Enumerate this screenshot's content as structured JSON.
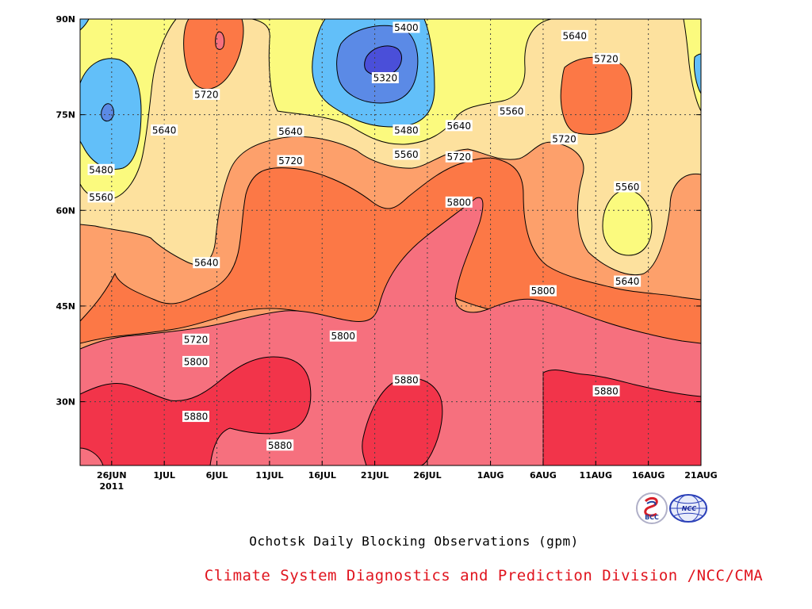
{
  "chart_data": {
    "type": "heatmap",
    "title": "Ochotsk Daily Blocking Observations (gpm)",
    "credit": "Climate System Diagnostics and Prediction Division /NCC/CMA",
    "x_ticks": [
      "26JUN",
      "1JUL",
      "6JUL",
      "11JUL",
      "16JUL",
      "21JUL",
      "26JUL",
      "1AUG",
      "6AUG",
      "11AUG",
      "16AUG",
      "21AUG"
    ],
    "x_tick_year": "2011",
    "xlim": [
      "2011-06-23",
      "2011-08-21"
    ],
    "y_ticks": [
      "30N",
      "45N",
      "60N",
      "75N",
      "90N"
    ],
    "ylim": [
      20,
      90
    ],
    "grid": true,
    "contour_levels": [
      5320,
      5400,
      5480,
      5560,
      5640,
      5720,
      5800,
      5880
    ],
    "level_colors": [
      "#4a4fd9",
      "#5b8ae6",
      "#62bff9",
      "#fbfa7e",
      "#fde19e",
      "#fda06b",
      "#fc7846",
      "#f6707e",
      "#f2344a"
    ],
    "contour_labels": [
      {
        "text": "5400",
        "date": "2011-07-24",
        "lat": 88.7
      },
      {
        "text": "5640",
        "date": "2011-08-09",
        "lat": 87.4
      },
      {
        "text": "5720",
        "date": "2011-08-12",
        "lat": 83.8
      },
      {
        "text": "5320",
        "date": "2011-07-22",
        "lat": 80.8
      },
      {
        "text": "5720",
        "date": "2011-07-05",
        "lat": 78.2
      },
      {
        "text": "5560",
        "date": "2011-08-03",
        "lat": 75.6
      },
      {
        "text": "5640",
        "date": "2011-07-01",
        "lat": 72.6
      },
      {
        "text": "5640",
        "date": "2011-07-13",
        "lat": 72.4
      },
      {
        "text": "5480",
        "date": "2011-07-24",
        "lat": 72.6
      },
      {
        "text": "5640",
        "date": "2011-07-29",
        "lat": 73.3
      },
      {
        "text": "5720",
        "date": "2011-08-08",
        "lat": 71.2
      },
      {
        "text": "5560",
        "date": "2011-07-24",
        "lat": 68.8
      },
      {
        "text": "5720",
        "date": "2011-07-13",
        "lat": 67.8
      },
      {
        "text": "5720",
        "date": "2011-07-29",
        "lat": 68.4
      },
      {
        "text": "5480",
        "date": "2011-06-25",
        "lat": 66.4
      },
      {
        "text": "5560",
        "date": "2011-08-14",
        "lat": 63.7
      },
      {
        "text": "5560",
        "date": "2011-06-25",
        "lat": 62.1
      },
      {
        "text": "5800",
        "date": "2011-07-29",
        "lat": 61.3
      },
      {
        "text": "5640",
        "date": "2011-07-05",
        "lat": 51.8
      },
      {
        "text": "5640",
        "date": "2011-08-14",
        "lat": 48.9
      },
      {
        "text": "5800",
        "date": "2011-08-06",
        "lat": 47.4
      },
      {
        "text": "5800",
        "date": "2011-07-18",
        "lat": 40.3
      },
      {
        "text": "5720",
        "date": "2011-07-04",
        "lat": 39.8
      },
      {
        "text": "5800",
        "date": "2011-07-04",
        "lat": 36.3
      },
      {
        "text": "5880",
        "date": "2011-07-24",
        "lat": 33.4
      },
      {
        "text": "5880",
        "date": "2011-08-12",
        "lat": 31.7
      },
      {
        "text": "5880",
        "date": "2011-07-04",
        "lat": 27.7
      },
      {
        "text": "5880",
        "date": "2011-07-12",
        "lat": 23.2
      }
    ]
  },
  "logos": {
    "bcc_text": "BCC",
    "ncc_text": "NCC"
  }
}
